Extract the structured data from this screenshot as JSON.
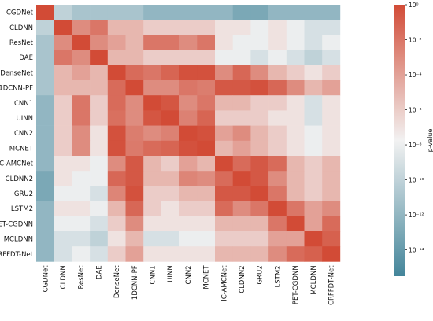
{
  "chart_data": {
    "type": "heatmap",
    "title": "",
    "xlabel": "",
    "ylabel": "",
    "rows": [
      "CGDNet",
      "CLDNN",
      "ResNet",
      "DAE",
      "DenseNet",
      "1DCNN-PF",
      "CNN1",
      "UINN",
      "CNN2",
      "MCNET",
      "IC-AMCNet",
      "CLDNN2",
      "GRU2",
      "LSTM2",
      "PET-CGDNN",
      "MCLDNN",
      "CRFFDT-Net"
    ],
    "columns": [
      "CGDNet",
      "CLDNN",
      "ResNet",
      "DAE",
      "DenseNet",
      "1DCNN-PF",
      "CNN1",
      "UINN",
      "CNN2",
      "MCNET",
      "IC-AMCNet",
      "CLDNN2",
      "GRU2",
      "LSTM2",
      "PET-CGDNN",
      "MCLDNN",
      "CRFFDT-Net"
    ],
    "value_scale": "log10 p-value",
    "values_log10": [
      [
        0,
        -10,
        -11,
        -11,
        -11,
        -11,
        -12,
        -12,
        -12,
        -12,
        -12,
        -13,
        -13,
        -12,
        -12,
        -12,
        -12
      ],
      [
        -10,
        0,
        -3,
        -2,
        -5,
        -5,
        -6,
        -6,
        -6,
        -6,
        -7,
        -7,
        -8,
        -7,
        -8,
        -9,
        -9
      ],
      [
        -11,
        -3,
        0,
        -3,
        -4,
        -5,
        -2,
        -2,
        -3,
        -2,
        -7,
        -8,
        -8,
        -7,
        -8,
        -9,
        -8
      ],
      [
        -11,
        -2,
        -3,
        0,
        -5,
        -5,
        -6,
        -6,
        -6,
        -6,
        -8,
        -8,
        -9,
        -8,
        -9,
        -10,
        -9
      ],
      [
        -11,
        -5,
        -4,
        -5,
        0,
        -1.5,
        -2,
        -1.2,
        -0.3,
        -0.3,
        -3,
        -1.3,
        -3,
        -5,
        -6,
        -7,
        -6
      ],
      [
        -11,
        -5,
        -5,
        -5,
        -1.5,
        0,
        -3,
        -3,
        -2,
        -2.3,
        -0.6,
        -0.6,
        -0.3,
        -1.3,
        -3,
        -5,
        -4
      ],
      [
        -12,
        -6,
        -2,
        -6,
        -1.5,
        -3,
        0,
        -0.5,
        -3,
        -2,
        -5,
        -5,
        -6,
        -6,
        -7,
        -9,
        -7
      ],
      [
        -12,
        -6,
        -2,
        -6,
        -1.7,
        -3,
        -0.5,
        0,
        -2.5,
        -1.2,
        -6,
        -6,
        -6,
        -7,
        -7,
        -9,
        -7
      ],
      [
        -12,
        -6,
        -3,
        -7,
        -0.3,
        -2.3,
        -3,
        -2.5,
        0,
        -0.3,
        -4,
        -3,
        -5,
        -6,
        -7,
        -8,
        -7
      ],
      [
        -12,
        -6,
        -3,
        -7,
        -0.3,
        -2.2,
        -1.5,
        -1.2,
        -0.3,
        0,
        -5,
        -4,
        -5,
        -6,
        -7,
        -8,
        -7
      ],
      [
        -12,
        -7,
        -7,
        -8,
        -3,
        -0.6,
        -5,
        -6,
        -4,
        -5,
        0,
        -1.5,
        -0.6,
        -1.5,
        -5,
        -6,
        -5
      ],
      [
        -13,
        -7,
        -8,
        -8,
        -1.3,
        -0.6,
        -5,
        -5,
        -2.7,
        -3,
        -1.5,
        0,
        -0.6,
        -3,
        -5,
        -6,
        -5
      ],
      [
        -13,
        -8,
        -8,
        -9,
        -2.7,
        -0.3,
        -6,
        -6,
        -5,
        -5,
        -0.6,
        -0.6,
        0,
        -2,
        -5,
        -6,
        -5
      ],
      [
        -12,
        -7,
        -7,
        -8,
        -5,
        -1.3,
        -6,
        -7,
        -6,
        -6,
        -1.5,
        -3,
        -2,
        0,
        -2,
        -4,
        -3
      ],
      [
        -12,
        -8,
        -8,
        -9,
        -6,
        -3,
        -7,
        -7,
        -7,
        -7,
        -5,
        -5,
        -5,
        -2,
        0,
        -4,
        -1.5
      ],
      [
        -12,
        -9,
        -9,
        -10,
        -7,
        -5,
        -9,
        -9,
        -8,
        -8,
        -6,
        -6,
        -6,
        -4,
        -4,
        0,
        -1
      ],
      [
        -12,
        -9,
        -8,
        -9,
        -6,
        -4,
        -7,
        -7,
        -7,
        -7,
        -5,
        -5,
        -5,
        -3,
        -1.5,
        -1,
        0
      ]
    ],
    "colorbar": {
      "label": "p-value",
      "range_log10": [
        -15.5,
        0
      ],
      "ticks_log10": [
        0,
        -2,
        -4,
        -6,
        -8,
        -10,
        -12,
        -14
      ],
      "tick_labels": [
        "10⁰",
        "10⁻²",
        "10⁻⁴",
        "10⁻⁶",
        "10⁻⁸",
        "10⁻¹⁰",
        "10⁻¹²",
        "10⁻¹⁴"
      ]
    },
    "colormap": {
      "low": "#43859a",
      "mid": "#f2f2f2",
      "high": "#d24b36"
    },
    "grid": false,
    "legend": "colorbar-right"
  }
}
